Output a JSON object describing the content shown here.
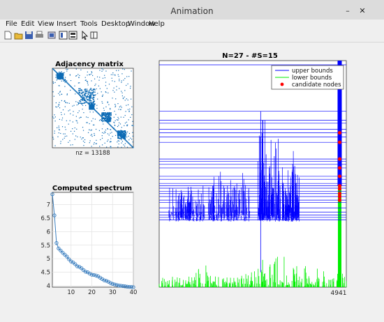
{
  "window": {
    "title": "Animation",
    "controls": [
      "–",
      "✕"
    ]
  },
  "menu": [
    "File",
    "Edit",
    "View",
    "Insert",
    "Tools",
    "Desktop",
    "Window",
    "Help"
  ],
  "toolbar": [
    "new-icon",
    "open-icon",
    "save-icon",
    "print-icon",
    "link-icon",
    "dock-icon",
    "layout-icon",
    "pointer-icon",
    "edit-plot-icon"
  ],
  "chart_data": [
    {
      "type": "heatmap",
      "title": "Adjacency matrix",
      "xlabel": "nz = 13188",
      "colors": {
        "marks": "#0c6bb5",
        "background": "#ffffff"
      }
    },
    {
      "type": "line",
      "title": "Computed spectrum",
      "x": [
        1,
        2,
        3,
        4,
        5,
        6,
        7,
        8,
        9,
        10,
        11,
        12,
        13,
        14,
        15,
        16,
        17,
        18,
        19,
        20,
        21,
        22,
        23,
        24,
        25,
        26,
        27,
        28,
        29,
        30,
        31,
        32,
        33,
        34,
        35,
        36,
        37,
        38,
        39,
        40
      ],
      "y": [
        7.38,
        6.6,
        5.58,
        5.38,
        5.3,
        5.22,
        5.15,
        5.08,
        4.98,
        4.9,
        4.86,
        4.8,
        4.72,
        4.7,
        4.65,
        4.58,
        4.52,
        4.5,
        4.45,
        4.41,
        4.4,
        4.38,
        4.35,
        4.3,
        4.25,
        4.2,
        4.18,
        4.15,
        4.1,
        4.07,
        4.05,
        4.03,
        4.01,
        4.0,
        3.99,
        3.98,
        3.97,
        3.96,
        3.96,
        3.95
      ],
      "xticks": [
        "10",
        "20",
        "30",
        "40"
      ],
      "yticks": [
        "4",
        "4.5",
        "5",
        "5.5",
        "6",
        "6.5",
        "7"
      ],
      "xlim": [
        1,
        40
      ],
      "ylim": [
        3.95,
        7.45
      ],
      "grid": true,
      "colors": {
        "line": "#3a7ebf",
        "marker": "#3a7ebf"
      }
    },
    {
      "type": "line",
      "title": "N=27 - #S=15",
      "x_end_label": "4941",
      "legend": [
        "upper bounds",
        "lower bounds",
        "candidate nodes"
      ],
      "legend_position": "top-right",
      "colors": {
        "upper": "#0000ff",
        "lower": "#00ee00",
        "candidate": "#ff0000"
      },
      "xlim": [
        0,
        4941
      ],
      "ylim": [
        0,
        7.6
      ],
      "horizontal_bounds": [
        7.46,
        5.9,
        5.6,
        5.5,
        5.3,
        5.18,
        5.04,
        4.86,
        4.3,
        4.22,
        4.12,
        4.0,
        3.72,
        3.62,
        3.48,
        3.4,
        3.32,
        3.22,
        3.14,
        3.04,
        2.92,
        2.84,
        2.66,
        2.52,
        2.42,
        2.34,
        2.26
      ],
      "candidate_nodes": [
        {
          "x": 4766,
          "y": 5.18
        },
        {
          "x": 4766,
          "y": 4.86
        },
        {
          "x": 4766,
          "y": 4.3
        },
        {
          "x": 4766,
          "y": 4.0
        },
        {
          "x": 4766,
          "y": 3.72
        },
        {
          "x": 4766,
          "y": 3.4
        },
        {
          "x": 4766,
          "y": 3.3
        },
        {
          "x": 4766,
          "y": 3.14
        },
        {
          "x": 4766,
          "y": 3.04
        },
        {
          "x": 4766,
          "y": 2.92
        }
      ]
    }
  ]
}
